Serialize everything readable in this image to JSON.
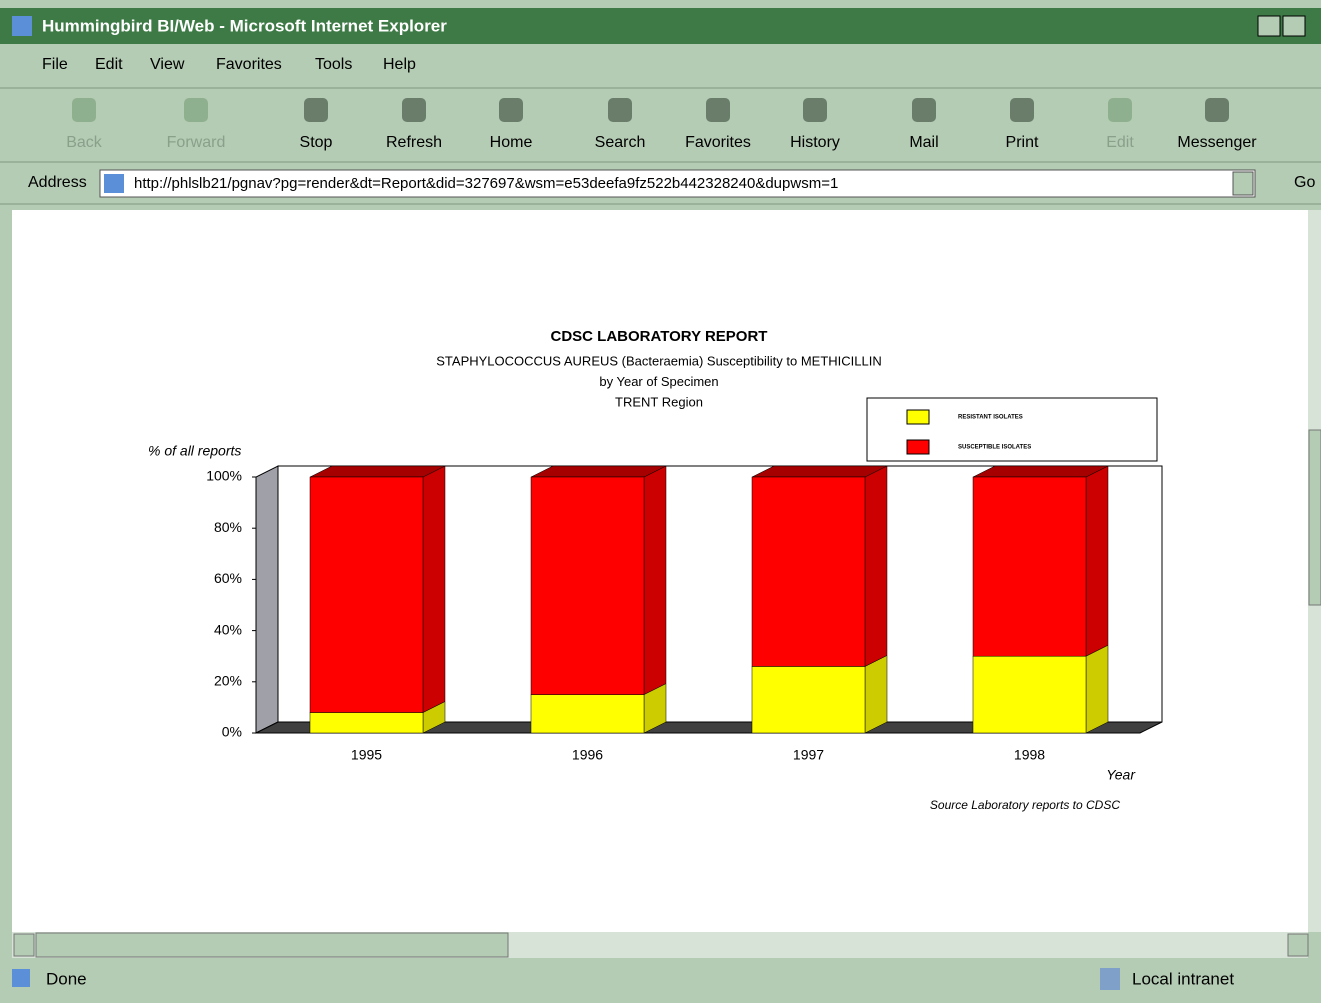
{
  "window": {
    "title": "Hummingbird BI/Web - Microsoft Internet Explorer",
    "menu": [
      "File",
      "Edit",
      "View",
      "Favorites",
      "Tools",
      "Help"
    ],
    "toolbar": [
      "Back",
      "Forward",
      "Stop",
      "Refresh",
      "Home",
      "Search",
      "Favorites",
      "History",
      "Mail",
      "Print",
      "Edit",
      "Messenger"
    ],
    "address_label": "Address",
    "url": "http://phlslb21/pgnav?pg=render&dt=Report&did=327697&wsm=e53deefa9fz522b442328240&dupwsm=1",
    "go": "Go",
    "status": "Done",
    "zone": "Local intranet"
  },
  "chart_data": {
    "type": "bar",
    "stacked": true,
    "title": "CDSC LABORATORY REPORT",
    "subtitle": [
      "STAPHYLOCOCCUS AUREUS (Bacteraemia) Susceptibility to METHICILLIN",
      "by Year of Specimen",
      "TRENT Region"
    ],
    "ylabel": "% of all reports",
    "xlabel": "Year",
    "source": "Source Laboratory reports to CDSC",
    "categories": [
      "1995",
      "1996",
      "1997",
      "1998"
    ],
    "series": [
      {
        "name": "RESISTANT ISOLATES",
        "color": "#ffff00",
        "values": [
          8,
          15,
          26,
          30
        ]
      },
      {
        "name": "SUSCEPTIBLE ISOLATES",
        "color": "#ff0000",
        "values": [
          92,
          85,
          74,
          70
        ]
      }
    ],
    "ylim": [
      0,
      100
    ],
    "yticks": [
      {
        "value": 0,
        "label": "0%"
      },
      {
        "value": 20,
        "label": "20%"
      },
      {
        "value": 40,
        "label": "40%"
      },
      {
        "value": 60,
        "label": "60%"
      },
      {
        "value": 80,
        "label": "80%"
      },
      {
        "value": 100,
        "label": "100%"
      }
    ]
  }
}
